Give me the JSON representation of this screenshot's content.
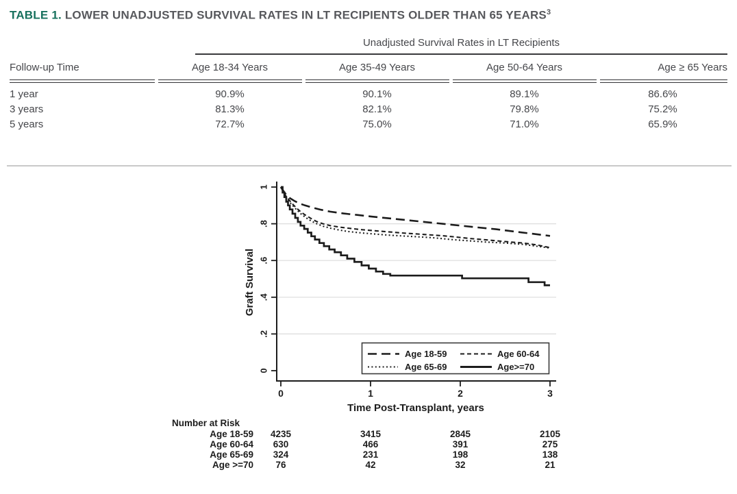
{
  "title": {
    "label": "TABLE 1.",
    "text": "LOWER UNADJUSTED SURVIVAL RATES IN LT RECIPIENTS OLDER THAN 65 YEARS",
    "superscript": "3"
  },
  "table": {
    "span_header": "Unadjusted Survival Rates in LT Recipients",
    "row_header": "Follow-up Time",
    "columns": [
      "Age 18-34 Years",
      "Age 35-49 Years",
      "Age 50-64 Years",
      "Age ≥ 65 Years"
    ],
    "rows": [
      {
        "label": "1 year",
        "values": [
          "90.9%",
          "90.1%",
          "89.1%",
          "86.6%"
        ]
      },
      {
        "label": "3 years",
        "values": [
          "81.3%",
          "82.1%",
          "79.8%",
          "75.2%"
        ]
      },
      {
        "label": "5 years",
        "values": [
          "72.7%",
          "75.0%",
          "71.0%",
          "65.9%"
        ]
      }
    ]
  },
  "chart_data": {
    "type": "line",
    "subtype": "kaplan-meier",
    "xlabel": "Time Post-Transplant, years",
    "ylabel": "Graft Survival",
    "xlim": [
      0,
      3
    ],
    "ylim": [
      0,
      1
    ],
    "xticks": [
      "0",
      "1",
      "2",
      "3"
    ],
    "yticks": [
      "0",
      ".2",
      ".4",
      ".6",
      ".8",
      "1"
    ],
    "grid": "horizontal-light",
    "legend_position": "inside-bottom-right",
    "series": [
      {
        "name": "Age 18-59",
        "style": "long-dash",
        "step": false,
        "points": [
          [
            0,
            1
          ],
          [
            0.03,
            0.978
          ],
          [
            0.06,
            0.958
          ],
          [
            0.1,
            0.94
          ],
          [
            0.15,
            0.925
          ],
          [
            0.2,
            0.912
          ],
          [
            0.27,
            0.9
          ],
          [
            0.35,
            0.888
          ],
          [
            0.45,
            0.876
          ],
          [
            0.55,
            0.866
          ],
          [
            0.7,
            0.856
          ],
          [
            0.85,
            0.848
          ],
          [
            1.0,
            0.84
          ],
          [
            1.2,
            0.83
          ],
          [
            1.4,
            0.82
          ],
          [
            1.6,
            0.81
          ],
          [
            1.8,
            0.8
          ],
          [
            2.0,
            0.79
          ],
          [
            2.2,
            0.78
          ],
          [
            2.4,
            0.77
          ],
          [
            2.6,
            0.758
          ],
          [
            2.8,
            0.746
          ],
          [
            3.0,
            0.734
          ]
        ]
      },
      {
        "name": "Age 60-64",
        "style": "short-dash",
        "step": false,
        "points": [
          [
            0,
            1
          ],
          [
            0.03,
            0.972
          ],
          [
            0.06,
            0.948
          ],
          [
            0.1,
            0.925
          ],
          [
            0.14,
            0.903
          ],
          [
            0.18,
            0.883
          ],
          [
            0.23,
            0.862
          ],
          [
            0.28,
            0.845
          ],
          [
            0.34,
            0.828
          ],
          [
            0.4,
            0.812
          ],
          [
            0.47,
            0.8
          ],
          [
            0.55,
            0.79
          ],
          [
            0.65,
            0.782
          ],
          [
            0.75,
            0.776
          ],
          [
            0.9,
            0.768
          ],
          [
            1.05,
            0.762
          ],
          [
            1.2,
            0.756
          ],
          [
            1.35,
            0.75
          ],
          [
            1.5,
            0.745
          ],
          [
            1.65,
            0.74
          ],
          [
            1.8,
            0.735
          ],
          [
            1.95,
            0.728
          ],
          [
            2.1,
            0.72
          ],
          [
            2.3,
            0.712
          ],
          [
            2.5,
            0.703
          ],
          [
            2.7,
            0.695
          ],
          [
            2.85,
            0.685
          ],
          [
            3.0,
            0.67
          ]
        ]
      },
      {
        "name": "Age 65-69",
        "style": "dotted",
        "step": false,
        "points": [
          [
            0,
            1
          ],
          [
            0.03,
            0.968
          ],
          [
            0.06,
            0.942
          ],
          [
            0.1,
            0.917
          ],
          [
            0.14,
            0.895
          ],
          [
            0.18,
            0.874
          ],
          [
            0.23,
            0.852
          ],
          [
            0.28,
            0.833
          ],
          [
            0.34,
            0.815
          ],
          [
            0.4,
            0.8
          ],
          [
            0.47,
            0.787
          ],
          [
            0.55,
            0.776
          ],
          [
            0.65,
            0.766
          ],
          [
            0.75,
            0.758
          ],
          [
            0.9,
            0.75
          ],
          [
            1.05,
            0.744
          ],
          [
            1.2,
            0.738
          ],
          [
            1.35,
            0.734
          ],
          [
            1.5,
            0.73
          ],
          [
            1.7,
            0.724
          ],
          [
            1.9,
            0.714
          ],
          [
            2.1,
            0.707
          ],
          [
            2.3,
            0.7
          ],
          [
            2.5,
            0.695
          ],
          [
            2.7,
            0.688
          ],
          [
            2.85,
            0.678
          ],
          [
            3.0,
            0.668
          ]
        ]
      },
      {
        "name": "Age>=70",
        "style": "solid",
        "step": true,
        "points": [
          [
            0,
            1
          ],
          [
            0.02,
            0.97
          ],
          [
            0.04,
            0.945
          ],
          [
            0.06,
            0.92
          ],
          [
            0.08,
            0.9
          ],
          [
            0.1,
            0.878
          ],
          [
            0.13,
            0.855
          ],
          [
            0.16,
            0.832
          ],
          [
            0.19,
            0.81
          ],
          [
            0.22,
            0.79
          ],
          [
            0.26,
            0.772
          ],
          [
            0.3,
            0.752
          ],
          [
            0.34,
            0.732
          ],
          [
            0.38,
            0.714
          ],
          [
            0.43,
            0.695
          ],
          [
            0.48,
            0.678
          ],
          [
            0.54,
            0.66
          ],
          [
            0.6,
            0.645
          ],
          [
            0.67,
            0.628
          ],
          [
            0.74,
            0.61
          ],
          [
            0.82,
            0.592
          ],
          [
            0.9,
            0.573
          ],
          [
            0.98,
            0.556
          ],
          [
            1.06,
            0.54
          ],
          [
            1.14,
            0.527
          ],
          [
            1.22,
            0.518
          ],
          [
            2.02,
            0.503
          ],
          [
            2.76,
            0.482
          ],
          [
            2.94,
            0.465
          ],
          [
            3.0,
            0.465
          ]
        ]
      }
    ],
    "number_at_risk": {
      "title": "Number at Risk",
      "rows": [
        {
          "label": "Age 18-59",
          "values": [
            4235,
            3415,
            2845,
            2105
          ]
        },
        {
          "label": "Age 60-64",
          "values": [
            630,
            466,
            391,
            275
          ]
        },
        {
          "label": "Age 65-69",
          "values": [
            324,
            231,
            198,
            138
          ]
        },
        {
          "label": "Age >=70",
          "values": [
            76,
            42,
            32,
            21
          ]
        }
      ]
    }
  },
  "colors": {
    "title_green": "#16705c",
    "title_gray": "#57585c",
    "table_text": "#45464a",
    "rule_dark": "#333335",
    "divider_gray": "#c9c9c9",
    "chart_line": "#1c1c1c",
    "grid_gray": "#dcdcdc"
  }
}
